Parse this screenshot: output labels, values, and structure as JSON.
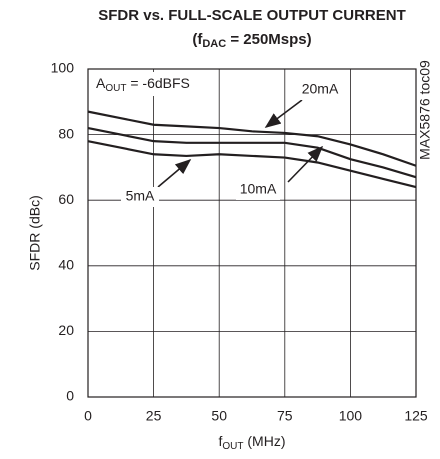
{
  "chart_data": {
    "type": "line",
    "title": "SFDR vs. FULL-SCALE OUTPUT CURRENT",
    "subtitle": {
      "base": "(f",
      "sub": "DAC",
      "rest": " = 250Msps)"
    },
    "annotation": {
      "base": "A",
      "sub": "OUT",
      "rest": " = -6dBFS"
    },
    "side_label": "MAX5876 toc09",
    "xlabel": {
      "base": "f",
      "sub": "OUT",
      "rest": " (MHz)"
    },
    "ylabel": "SFDR (dBc)",
    "x": [
      0,
      12.5,
      25,
      37.5,
      50,
      62.5,
      75,
      87.5,
      100,
      112.5,
      125
    ],
    "series": [
      {
        "name": "20mA",
        "color": "#231f20",
        "values": [
          87,
          85,
          83,
          82.5,
          82,
          81,
          80.5,
          79.5,
          77,
          74,
          70.5
        ]
      },
      {
        "name": "10mA",
        "color": "#231f20",
        "values": [
          82,
          80,
          78,
          77.5,
          77.5,
          77.5,
          77.5,
          76,
          72.5,
          70,
          67
        ]
      },
      {
        "name": "5mA",
        "color": "#231f20",
        "values": [
          78,
          76,
          74,
          73.5,
          74,
          73.5,
          73,
          71.5,
          69,
          66.5,
          64
        ]
      }
    ],
    "xlim": [
      0,
      125
    ],
    "xticks": [
      0,
      25,
      50,
      75,
      100,
      125
    ],
    "ylim": [
      0,
      100
    ],
    "yticks": [
      0,
      20,
      40,
      60,
      80,
      100
    ],
    "grid": true
  }
}
